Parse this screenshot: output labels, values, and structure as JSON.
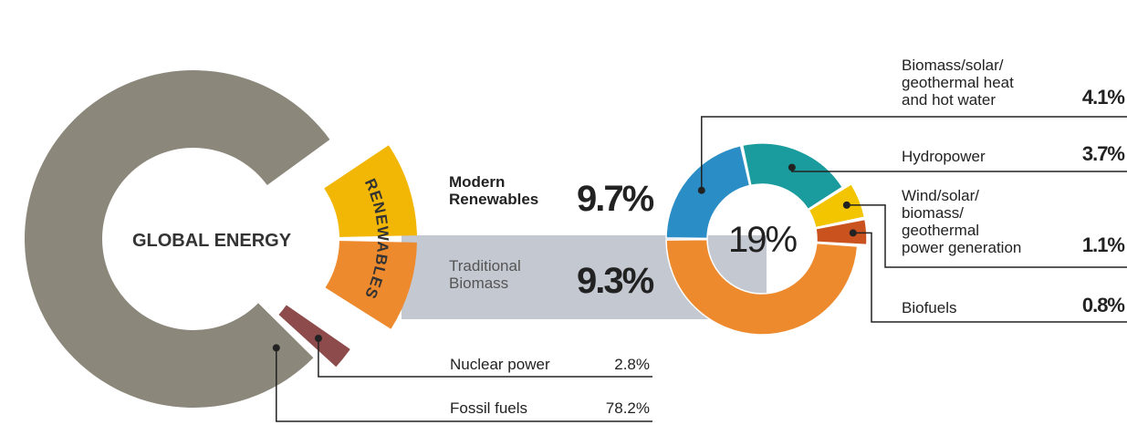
{
  "chart_data": [
    {
      "type": "donut",
      "center_label": "GLOBAL ENERGY",
      "group_label": "RENEWABLES",
      "categories": [
        "Modern\nRenewables",
        "Traditional\nBiomass",
        "Nuclear power",
        "Fossil fuels"
      ],
      "values": [
        9.7,
        9.3,
        2.8,
        78.2
      ],
      "value_labels": [
        "9.7%",
        "9.3%",
        "2.8%",
        "78.2%"
      ],
      "colors": [
        "#f2b705",
        "#ee8a2e",
        "#8e4b4b",
        "#8c877b"
      ]
    },
    {
      "type": "donut",
      "center_label": "19%",
      "categories": [
        "Biomass/solar/\ngeothermal heat\nand hot water",
        "Hydropower",
        "Wind/solar/\nbiomass/\ngeothermal\npower generation",
        "Biofuels",
        null
      ],
      "values": [
        4.1,
        3.7,
        1.1,
        0.8,
        9.3
      ],
      "value_labels": [
        "4.1%",
        "3.7%",
        "1.1%",
        "0.8%",
        null
      ],
      "colors": [
        "#2b8dc6",
        "#1a9c9e",
        "#f2c500",
        "#c9521f",
        "#ee8a2e"
      ]
    }
  ]
}
